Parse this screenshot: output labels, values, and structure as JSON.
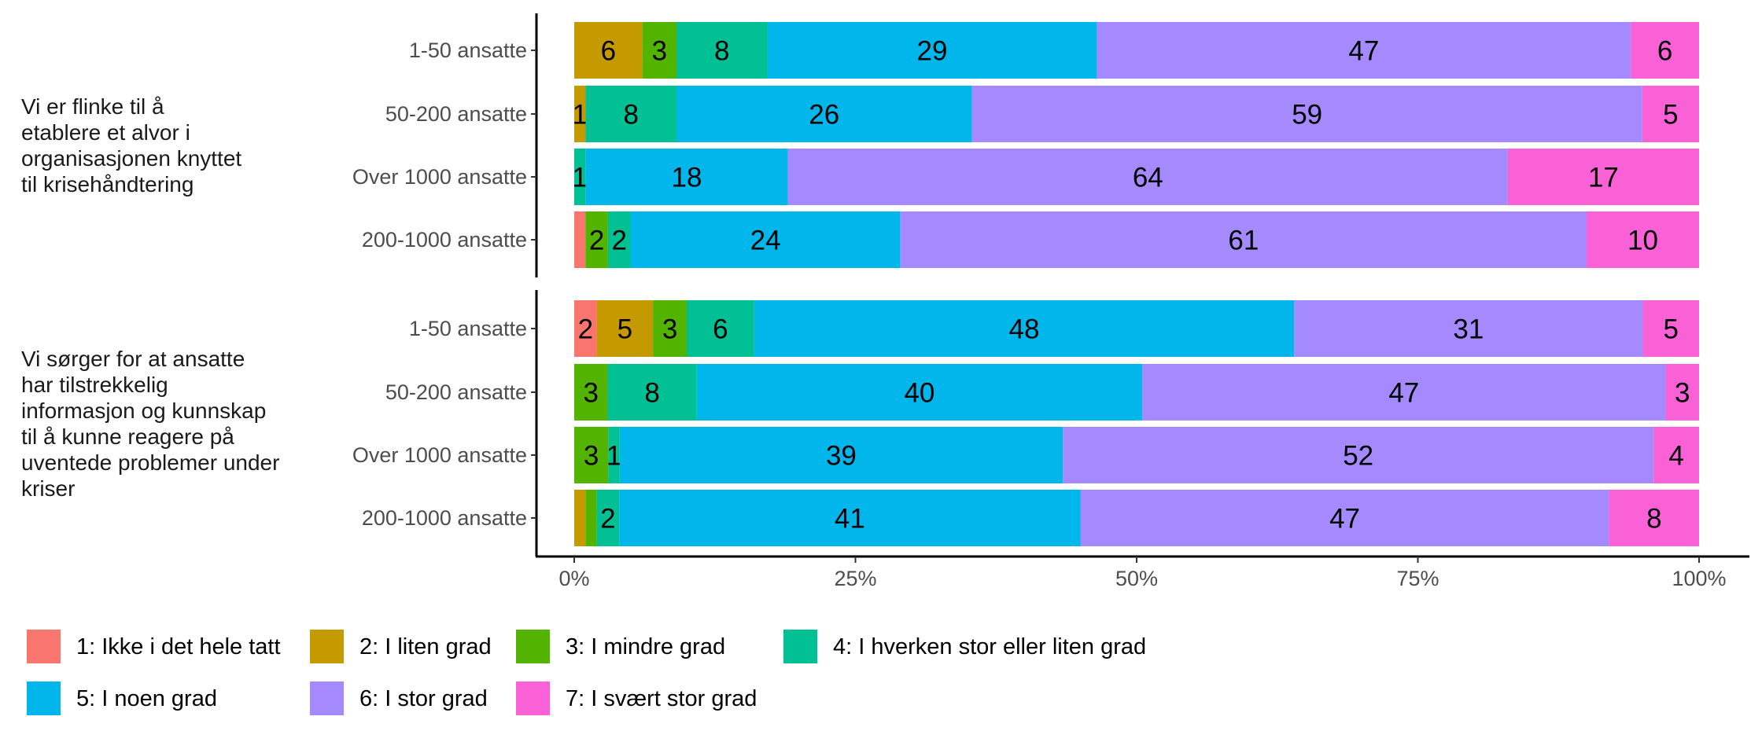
{
  "chart_data": {
    "type": "bar",
    "orientation": "horizontal",
    "stacked": "percent",
    "title": "",
    "xlabel": "",
    "ylabel": "",
    "xlim": [
      0,
      100
    ],
    "x_ticks": [
      "0%",
      "25%",
      "50%",
      "75%",
      "100%"
    ],
    "x_tick_values": [
      0,
      25,
      50,
      75,
      100
    ],
    "grid": false,
    "legend_position": "bottom",
    "legend": [
      {
        "name": "1: Ikke i det hele tatt",
        "color": "#F8766D"
      },
      {
        "name": "2: I liten grad",
        "color": "#C49A00"
      },
      {
        "name": "3: I mindre grad",
        "color": "#53B400"
      },
      {
        "name": "4: I hverken stor eller liten grad",
        "color": "#00C094"
      },
      {
        "name": "5: I noen grad",
        "color": "#00B6EB"
      },
      {
        "name": "6: I stor grad",
        "color": "#A58AFF"
      },
      {
        "name": "7: I svært stor grad",
        "color": "#FB61D7"
      }
    ],
    "panels": [
      {
        "label_lines": [
          "Vi er flinke til å",
          "etablere et alvor i",
          "organisasjonen knyttet",
          "til krisehåndtering"
        ],
        "rows": [
          {
            "category": "1-50 ansatte",
            "values": [
              0,
              6,
              3,
              8,
              29,
              47,
              6
            ],
            "labels": [
              "",
              "6",
              "3",
              "8",
              "29",
              "47",
              "6"
            ]
          },
          {
            "category": "50-200 ansatte",
            "values": [
              0,
              1,
              0,
              8,
              26,
              59,
              5
            ],
            "labels": [
              "",
              "1",
              "",
              "8",
              "26",
              "59",
              "5"
            ]
          },
          {
            "category": "Over 1000 ansatte",
            "values": [
              0,
              0,
              0,
              1,
              18,
              64,
              17
            ],
            "labels": [
              "",
              "",
              "",
              "1",
              "18",
              "64",
              "17"
            ]
          },
          {
            "category": "200-1000 ansatte",
            "values": [
              1,
              0,
              2,
              2,
              24,
              61,
              10
            ],
            "labels": [
              "",
              "",
              "2",
              "2",
              "24",
              "61",
              "10"
            ]
          }
        ]
      },
      {
        "label_lines": [
          "Vi sørger for at ansatte",
          "har tilstrekkelig",
          "informasjon og kunnskap",
          "til å kunne reagere på",
          "uventede problemer under",
          "kriser"
        ],
        "rows": [
          {
            "category": "1-50 ansatte",
            "values": [
              2,
              5,
              3,
              6,
              48,
              31,
              5
            ],
            "labels": [
              "2",
              "5",
              "3",
              "6",
              "48",
              "31",
              "5"
            ]
          },
          {
            "category": "50-200 ansatte",
            "values": [
              0,
              0,
              3,
              8,
              40,
              47,
              3
            ],
            "labels": [
              "",
              "",
              "3",
              "8",
              "40",
              "47",
              "3"
            ]
          },
          {
            "category": "Over 1000 ansatte",
            "values": [
              0,
              0,
              3,
              1,
              39,
              52,
              4
            ],
            "labels": [
              "",
              "",
              "3",
              "1",
              "39",
              "52",
              "4"
            ]
          },
          {
            "category": "200-1000 ansatte",
            "values": [
              0,
              1,
              1,
              2,
              41,
              47,
              8
            ],
            "labels": [
              "",
              "",
              "",
              "2",
              "41",
              "47",
              "8"
            ]
          }
        ]
      }
    ]
  }
}
